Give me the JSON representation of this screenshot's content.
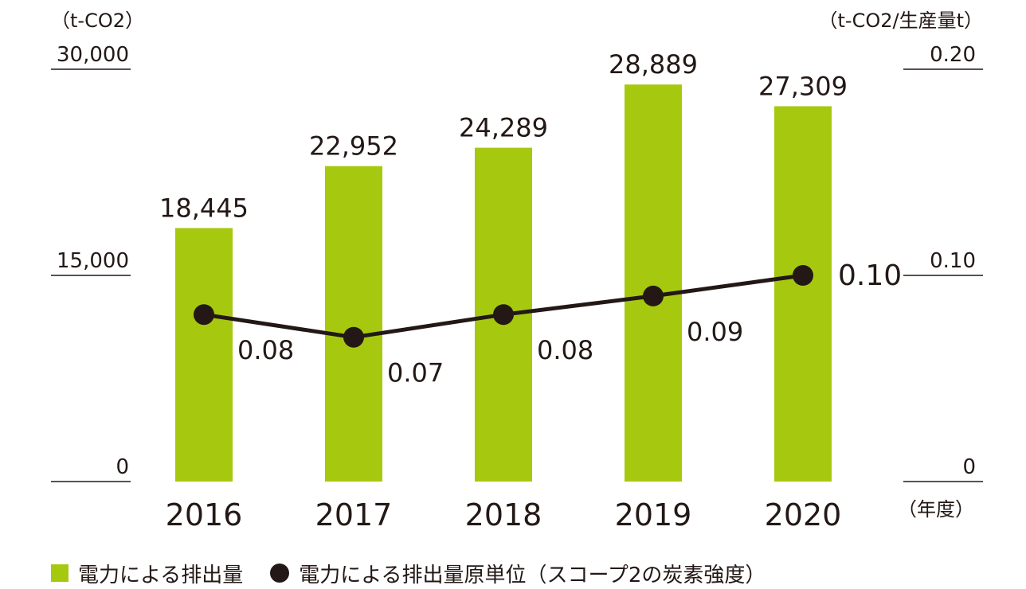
{
  "chart_data": {
    "type": "bar",
    "categories": [
      "2016",
      "2017",
      "2018",
      "2019",
      "2020"
    ],
    "series": [
      {
        "name": "電力による排出量",
        "type": "bar",
        "axis": "left",
        "values": [
          18445,
          22952,
          24289,
          28889,
          27309
        ],
        "labels": [
          "18,445",
          "22,952",
          "24,289",
          "28,889",
          "27,309"
        ],
        "color": "#a6c90f"
      },
      {
        "name": "電力による排出量原単位（スコープ2の炭素強度）",
        "type": "line",
        "axis": "right",
        "values": [
          0.081,
          0.07,
          0.081,
          0.09,
          0.1
        ],
        "labels": [
          "0.08",
          "0.07",
          "0.08",
          "0.09",
          "0.10"
        ],
        "color": "#231815"
      }
    ],
    "y_left": {
      "unit": "（t-CO2）",
      "ylim": [
        0,
        30000
      ],
      "ticks": [
        "0",
        "15,000",
        "30,000"
      ],
      "tick_values": [
        0,
        15000,
        30000
      ]
    },
    "y_right": {
      "unit": "（t-CO2/生産量t）",
      "ylim": [
        0,
        0.2
      ],
      "ticks": [
        "0",
        "0.10",
        "0.20"
      ],
      "tick_values": [
        0,
        0.1,
        0.2
      ]
    },
    "x_unit": "（年度）",
    "grid": false,
    "legend_position": "bottom-left"
  }
}
